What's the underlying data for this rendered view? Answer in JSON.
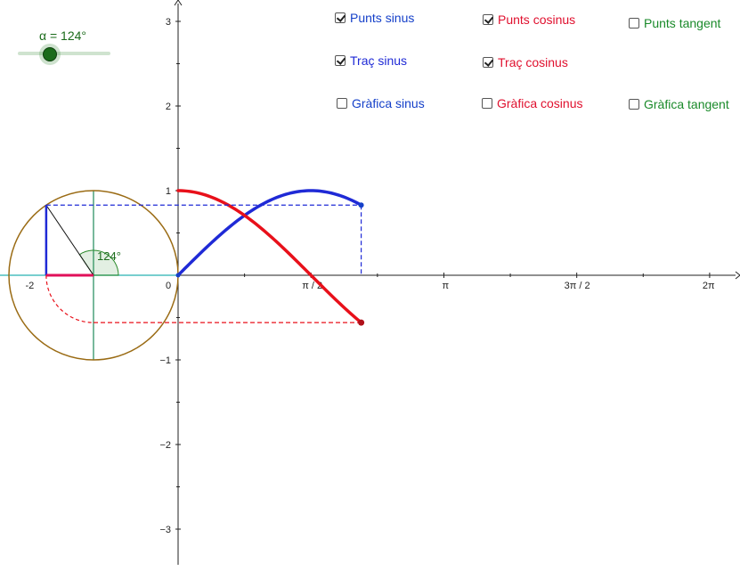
{
  "slider": {
    "label": "α = 124°",
    "value": 124,
    "min": 0,
    "max": 360,
    "color": "#1a6b1a"
  },
  "checkboxes": [
    {
      "id": "punts-sinus",
      "label": "Punts sinus",
      "checked": true,
      "color": "#1540c9"
    },
    {
      "id": "punts-cosinus",
      "label": "Punts cosinus",
      "checked": true,
      "color": "#e0102e"
    },
    {
      "id": "punts-tangent",
      "label": "Punts tangent",
      "checked": false,
      "color": "#1a8a2a"
    },
    {
      "id": "trac-sinus",
      "label": "Traç sinus",
      "checked": true,
      "color": "#1f2ad6"
    },
    {
      "id": "trac-cosinus",
      "label": "Traç cosinus",
      "checked": true,
      "color": "#e0102e"
    },
    {
      "id": "grafica-sinus",
      "label": "Gràfica sinus",
      "checked": false,
      "color": "#1540c9"
    },
    {
      "id": "grafica-cosinus",
      "label": "Gràfica cosinus",
      "checked": false,
      "color": "#e0102e"
    },
    {
      "id": "grafica-tangent",
      "label": "Gràfica tangent",
      "checked": false,
      "color": "#1a8a2a"
    }
  ],
  "axes": {
    "x_ticks": [
      "-2",
      "0",
      "π / 2",
      "π",
      "3π / 2",
      "2π"
    ],
    "y_ticks": [
      "3",
      "2",
      "1",
      "−1",
      "−2",
      "−3"
    ]
  },
  "angle_label": "124°",
  "colors": {
    "sine": "#1f2ad6",
    "cosine": "#e8101a",
    "circle": "#9a6b14",
    "axis_teal": "#4bbfbf",
    "cross": "#1f8a5a"
  }
}
